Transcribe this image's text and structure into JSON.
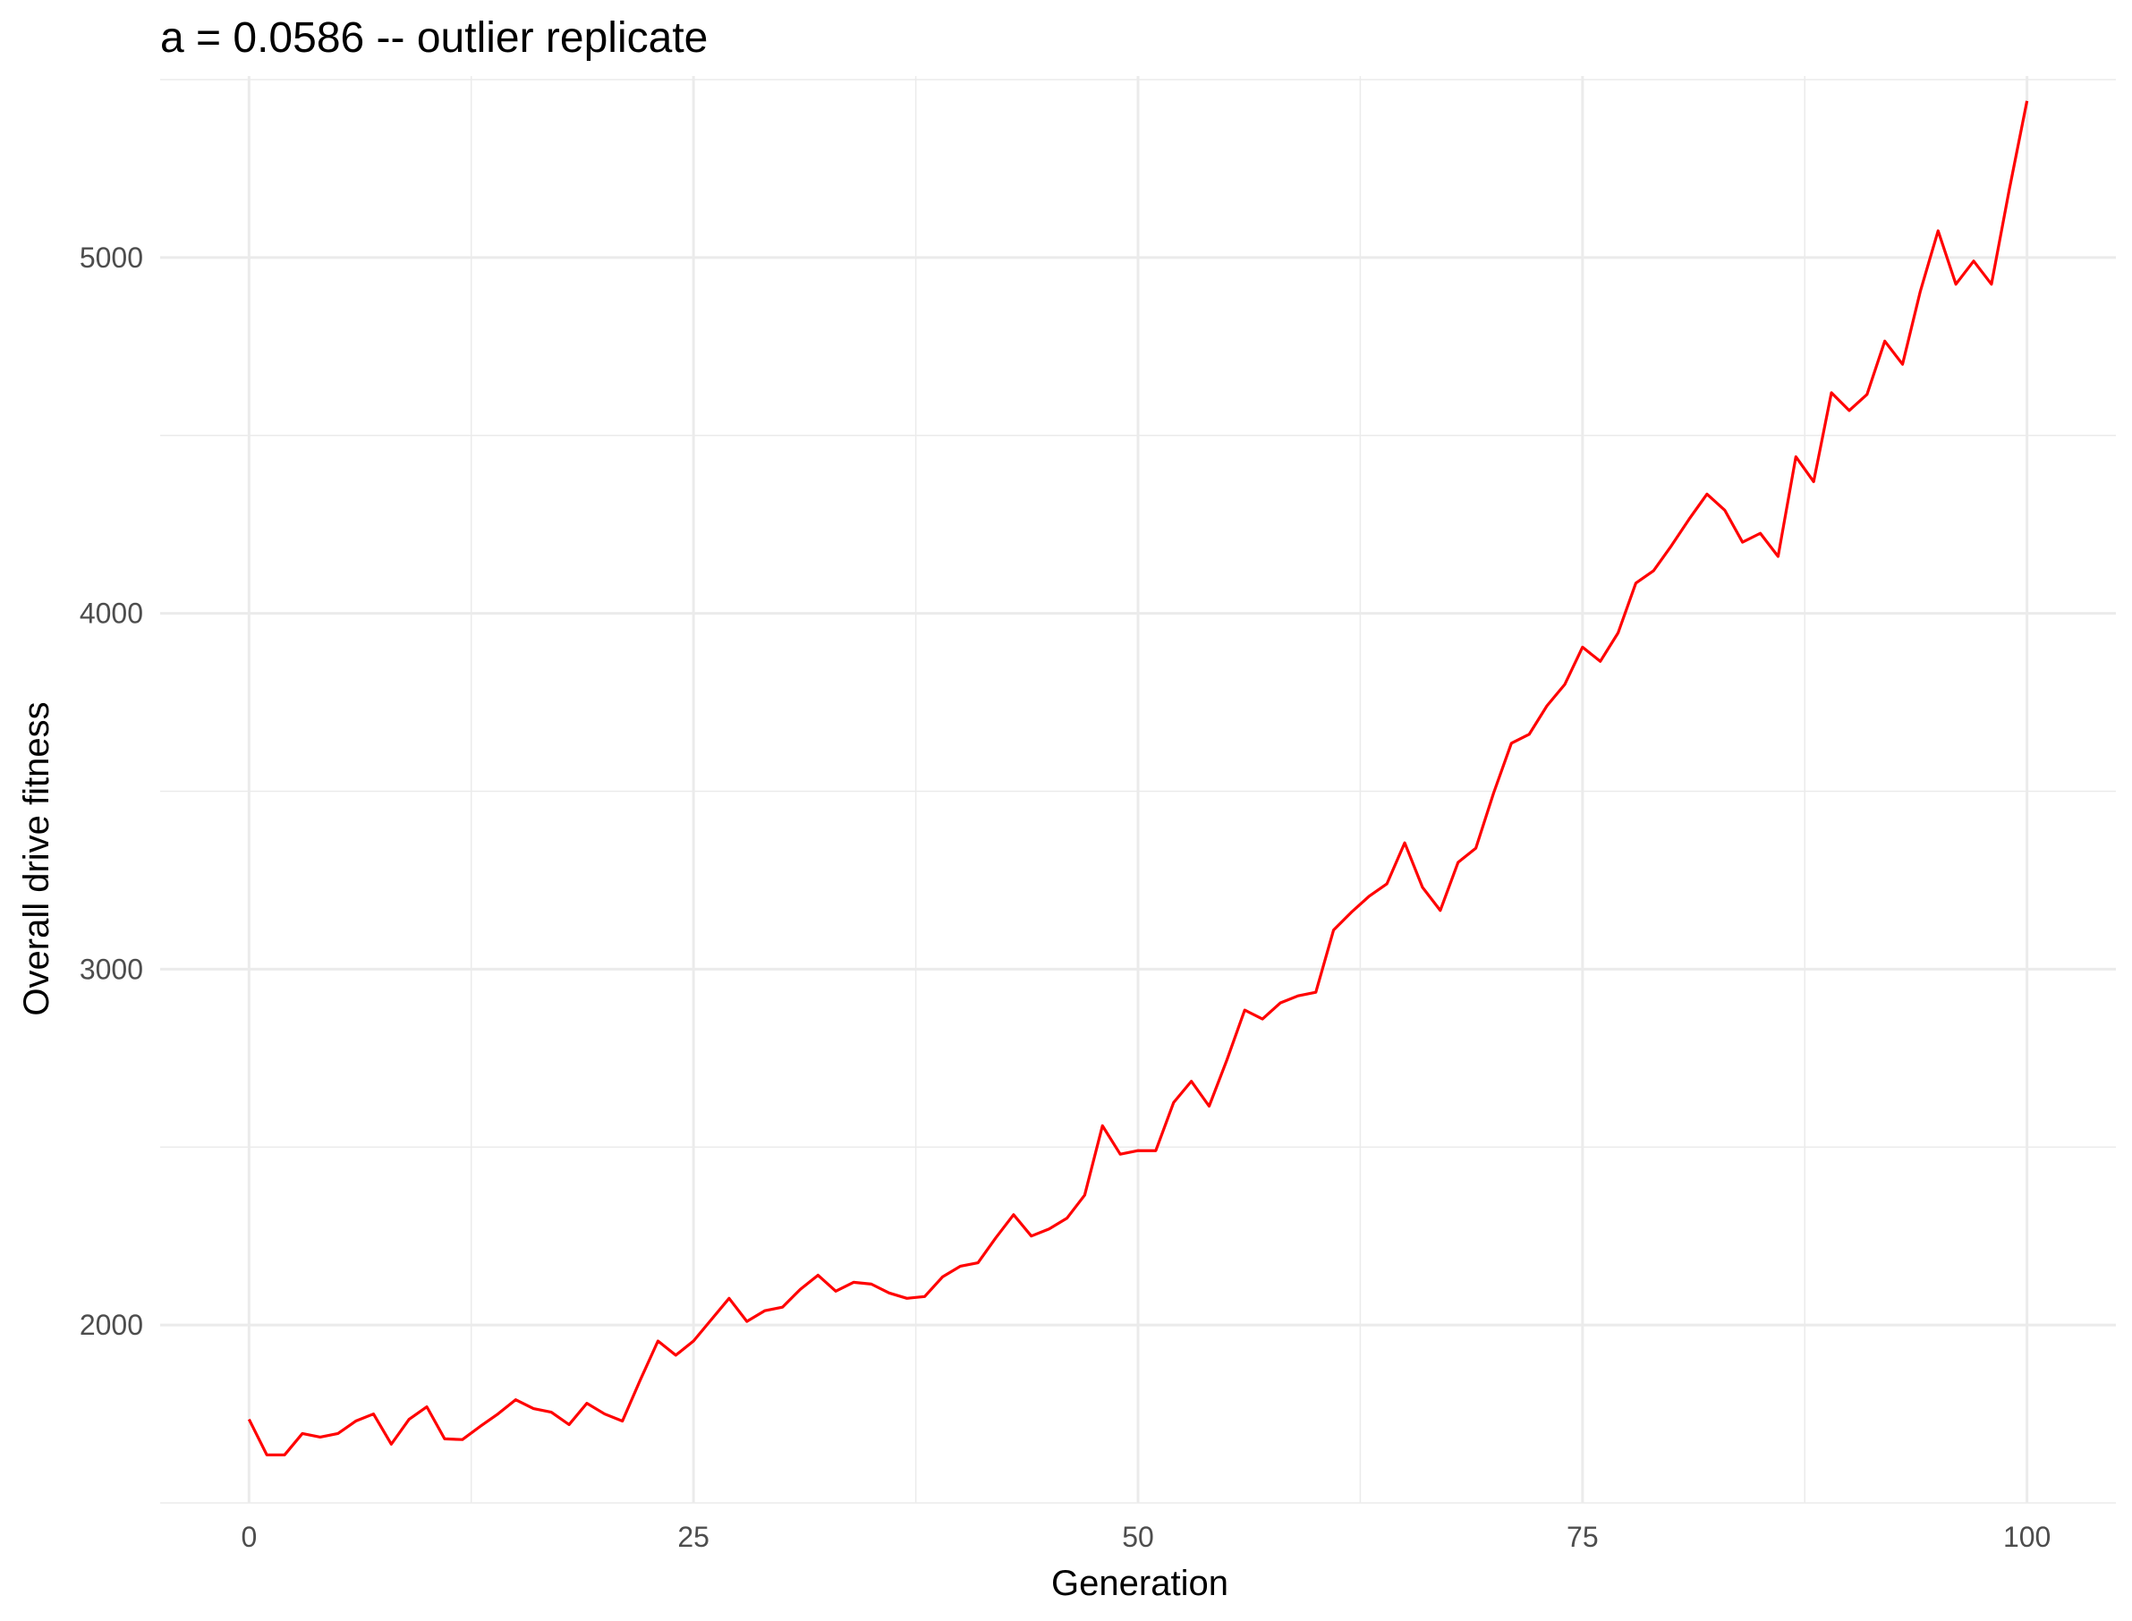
{
  "chart_data": {
    "type": "line",
    "title": "a = 0.0586 -- outlier replicate",
    "xlabel": "Generation",
    "ylabel": "Overall drive fitness",
    "xlim": [
      -5,
      105
    ],
    "ylim": [
      1500,
      5510
    ],
    "x_ticks": [
      0,
      25,
      50,
      75,
      100
    ],
    "y_ticks": [
      2000,
      3000,
      4000,
      5000
    ],
    "x_minor_ticks": [
      12.5,
      37.5,
      62.5,
      87.5
    ],
    "y_minor_ticks": [
      1500,
      2500,
      3500,
      4500,
      5500
    ],
    "grid": true,
    "legend": "none",
    "colors": {
      "line": "#ff0000",
      "grid": "#ebebeb",
      "background": "#ffffff"
    },
    "series": [
      {
        "x": [
          0,
          1,
          2,
          3,
          4,
          5,
          6,
          7,
          8,
          9,
          10,
          11,
          12,
          13,
          14,
          15,
          16,
          17,
          18,
          19,
          20,
          21,
          22,
          23,
          24,
          25,
          26,
          27,
          28,
          29,
          30,
          31,
          32,
          33,
          34,
          35,
          36,
          37,
          38,
          39,
          40,
          41,
          42,
          43,
          44,
          45,
          46,
          47,
          48,
          49,
          50,
          51,
          52,
          53,
          54,
          55,
          56,
          57,
          58,
          59,
          60,
          61,
          62,
          63,
          64,
          65,
          66,
          67,
          68,
          69,
          70,
          71,
          72,
          73,
          74,
          75,
          76,
          77,
          78,
          79,
          80,
          81,
          82,
          83,
          84,
          85,
          86,
          87,
          88,
          89,
          90,
          91,
          92,
          93,
          94,
          95,
          96,
          97,
          98,
          99,
          100
        ],
        "values": [
          1735,
          1635,
          1635,
          1695,
          1685,
          1695,
          1730,
          1750,
          1665,
          1735,
          1770,
          1680,
          1678,
          1715,
          1750,
          1790,
          1765,
          1755,
          1720,
          1780,
          1750,
          1730,
          1845,
          1955,
          1915,
          1955,
          2015,
          2075,
          2010,
          2040,
          2050,
          2100,
          2140,
          2095,
          2120,
          2115,
          2090,
          2075,
          2080,
          2135,
          2165,
          2175,
          2245,
          2310,
          2250,
          2270,
          2300,
          2365,
          2560,
          2480,
          2490,
          2490,
          2625,
          2685,
          2615,
          2745,
          2885,
          2860,
          2905,
          2925,
          2935,
          3110,
          3160,
          3205,
          3240,
          3355,
          3230,
          3165,
          3300,
          3340,
          3495,
          3635,
          3660,
          3740,
          3800,
          3905,
          3865,
          3945,
          4085,
          4120,
          4190,
          4265,
          4335,
          4290,
          4200,
          4225,
          4160,
          4440,
          4370,
          4620,
          4570,
          4615,
          4765,
          4700,
          4905,
          5075,
          4925,
          4990,
          4925,
          5190,
          5440
        ]
      }
    ]
  }
}
